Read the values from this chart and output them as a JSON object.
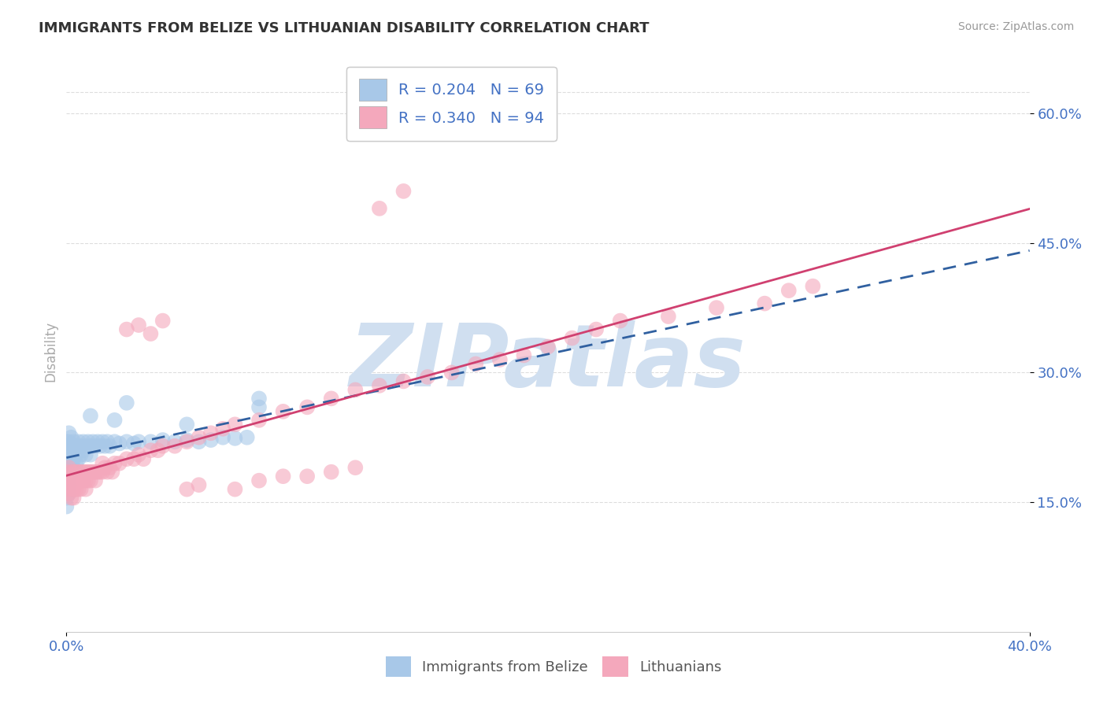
{
  "title": "IMMIGRANTS FROM BELIZE VS LITHUANIAN DISABILITY CORRELATION CHART",
  "source": "Source: ZipAtlas.com",
  "ylabel": "Disability",
  "xlim": [
    0.0,
    0.4
  ],
  "ylim": [
    0.0,
    0.65
  ],
  "xtick_vals": [
    0.0,
    0.4
  ],
  "xtick_labels": [
    "0.0%",
    "40.0%"
  ],
  "ytick_positions_right": [
    0.15,
    0.3,
    0.45,
    0.6
  ],
  "ytick_labels_right": [
    "15.0%",
    "30.0%",
    "45.0%",
    "60.0%"
  ],
  "legend_r1": "R = 0.204",
  "legend_n1": "N = 69",
  "legend_r2": "R = 0.340",
  "legend_n2": "N = 94",
  "blue_color": "#a8c8e8",
  "pink_color": "#f4a8bc",
  "blue_line_color": "#3060a0",
  "pink_line_color": "#d04070",
  "axis_label_color": "#aaaaaa",
  "tick_label_color": "#4472c4",
  "grid_color": "#dddddd",
  "watermark": "ZIPatlas",
  "watermark_color": "#d0dff0",
  "belize_x": [
    0.0,
    0.0,
    0.0,
    0.0,
    0.0,
    0.0,
    0.0,
    0.0,
    0.0,
    0.001,
    0.001,
    0.001,
    0.001,
    0.001,
    0.001,
    0.001,
    0.001,
    0.002,
    0.002,
    0.002,
    0.002,
    0.002,
    0.003,
    0.003,
    0.003,
    0.003,
    0.004,
    0.004,
    0.004,
    0.005,
    0.005,
    0.005,
    0.006,
    0.006,
    0.007,
    0.007,
    0.008,
    0.008,
    0.009,
    0.01,
    0.01,
    0.011,
    0.012,
    0.013,
    0.014,
    0.015,
    0.016,
    0.017,
    0.018,
    0.02,
    0.022,
    0.025,
    0.028,
    0.03,
    0.035,
    0.04,
    0.045,
    0.05,
    0.055,
    0.06,
    0.065,
    0.07,
    0.075,
    0.08,
    0.01,
    0.02,
    0.025,
    0.05,
    0.08
  ],
  "belize_y": [
    0.22,
    0.215,
    0.2,
    0.195,
    0.185,
    0.175,
    0.165,
    0.155,
    0.145,
    0.23,
    0.22,
    0.21,
    0.2,
    0.19,
    0.18,
    0.17,
    0.16,
    0.225,
    0.215,
    0.205,
    0.195,
    0.185,
    0.22,
    0.21,
    0.2,
    0.19,
    0.215,
    0.205,
    0.195,
    0.22,
    0.21,
    0.2,
    0.215,
    0.205,
    0.22,
    0.21,
    0.215,
    0.205,
    0.22,
    0.215,
    0.205,
    0.22,
    0.215,
    0.22,
    0.215,
    0.22,
    0.215,
    0.22,
    0.215,
    0.22,
    0.218,
    0.22,
    0.218,
    0.22,
    0.22,
    0.222,
    0.22,
    0.222,
    0.22,
    0.222,
    0.225,
    0.224,
    0.225,
    0.26,
    0.25,
    0.245,
    0.265,
    0.24,
    0.27
  ],
  "lithuanian_x": [
    0.0,
    0.0,
    0.0,
    0.001,
    0.001,
    0.001,
    0.001,
    0.002,
    0.002,
    0.002,
    0.002,
    0.003,
    0.003,
    0.003,
    0.003,
    0.004,
    0.004,
    0.004,
    0.005,
    0.005,
    0.005,
    0.006,
    0.006,
    0.006,
    0.007,
    0.007,
    0.008,
    0.008,
    0.008,
    0.009,
    0.009,
    0.01,
    0.01,
    0.011,
    0.012,
    0.012,
    0.013,
    0.014,
    0.015,
    0.015,
    0.016,
    0.017,
    0.018,
    0.019,
    0.02,
    0.022,
    0.025,
    0.028,
    0.03,
    0.032,
    0.035,
    0.038,
    0.04,
    0.045,
    0.05,
    0.055,
    0.06,
    0.065,
    0.07,
    0.08,
    0.09,
    0.1,
    0.11,
    0.12,
    0.13,
    0.14,
    0.15,
    0.16,
    0.17,
    0.18,
    0.19,
    0.2,
    0.21,
    0.22,
    0.23,
    0.25,
    0.27,
    0.29,
    0.3,
    0.31,
    0.025,
    0.03,
    0.035,
    0.04,
    0.05,
    0.055,
    0.07,
    0.08,
    0.09,
    0.1,
    0.11,
    0.12,
    0.13,
    0.14
  ],
  "lithuanian_y": [
    0.185,
    0.175,
    0.165,
    0.19,
    0.18,
    0.17,
    0.16,
    0.185,
    0.175,
    0.165,
    0.155,
    0.185,
    0.175,
    0.165,
    0.155,
    0.185,
    0.175,
    0.165,
    0.185,
    0.175,
    0.165,
    0.185,
    0.175,
    0.165,
    0.185,
    0.175,
    0.185,
    0.175,
    0.165,
    0.185,
    0.175,
    0.185,
    0.175,
    0.185,
    0.185,
    0.175,
    0.185,
    0.185,
    0.185,
    0.195,
    0.19,
    0.185,
    0.19,
    0.185,
    0.195,
    0.195,
    0.2,
    0.2,
    0.205,
    0.2,
    0.21,
    0.21,
    0.215,
    0.215,
    0.22,
    0.225,
    0.23,
    0.235,
    0.24,
    0.245,
    0.255,
    0.26,
    0.27,
    0.28,
    0.285,
    0.29,
    0.295,
    0.3,
    0.31,
    0.315,
    0.32,
    0.33,
    0.34,
    0.35,
    0.36,
    0.365,
    0.375,
    0.38,
    0.395,
    0.4,
    0.35,
    0.355,
    0.345,
    0.36,
    0.165,
    0.17,
    0.165,
    0.175,
    0.18,
    0.18,
    0.185,
    0.19,
    0.49,
    0.51
  ],
  "top_gridline_y": 0.625
}
